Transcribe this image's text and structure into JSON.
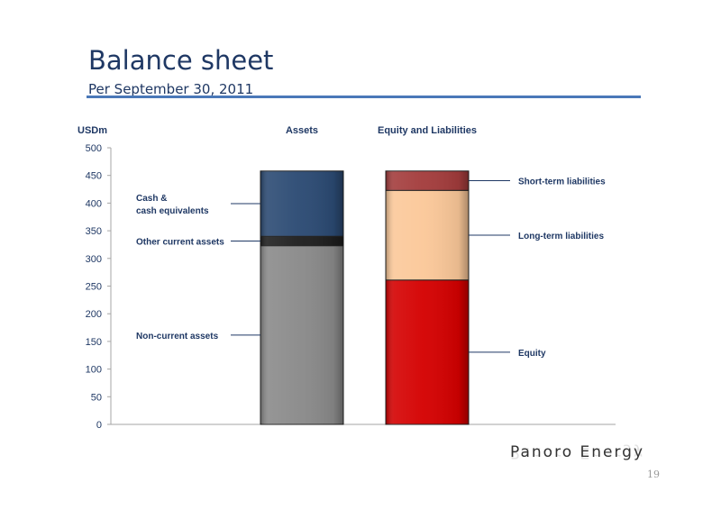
{
  "slide": {
    "title": "Balance sheet",
    "subtitle": "Per September 30, 2011",
    "brand": "Panoro Energy",
    "page_number": "19"
  },
  "colors": {
    "title": "#1f3864",
    "rule": "#4a78b8",
    "text": "#1f3864"
  },
  "chart_data": {
    "type": "bar",
    "stacked": true,
    "ylabel": "USDm",
    "ylim": [
      0,
      500
    ],
    "yticks": [
      0,
      50,
      100,
      150,
      200,
      250,
      300,
      350,
      400,
      450,
      500
    ],
    "grid": false,
    "categories": [
      "Assets",
      "Equity and Liabilities"
    ],
    "stacks": [
      {
        "category": "Assets",
        "label_side": "left",
        "segments": [
          {
            "name": "Non-current assets",
            "lines": [
              "Non-current assets"
            ],
            "value": 323,
            "color": "#8a8a8a"
          },
          {
            "name": "Other current assets",
            "lines": [
              "Other current assets"
            ],
            "value": 17,
            "color": "#1e1e1e"
          },
          {
            "name": "Cash & cash equivalents",
            "lines": [
              "Cash &",
              "cash equivalents"
            ],
            "value": 118,
            "color": "#2b4a73"
          }
        ]
      },
      {
        "category": "Equity and Liabilities",
        "label_side": "right",
        "segments": [
          {
            "name": "Equity",
            "lines": [
              "Equity"
            ],
            "value": 261,
            "color": "#d40000"
          },
          {
            "name": "Long-term liabilities",
            "lines": [
              "Long-term liabilities"
            ],
            "value": 162,
            "color": "#fbc899"
          },
          {
            "name": "Short-term liabilities",
            "lines": [
              "Short-term liabilities"
            ],
            "value": 35,
            "color": "#a33c3c"
          }
        ]
      }
    ]
  }
}
